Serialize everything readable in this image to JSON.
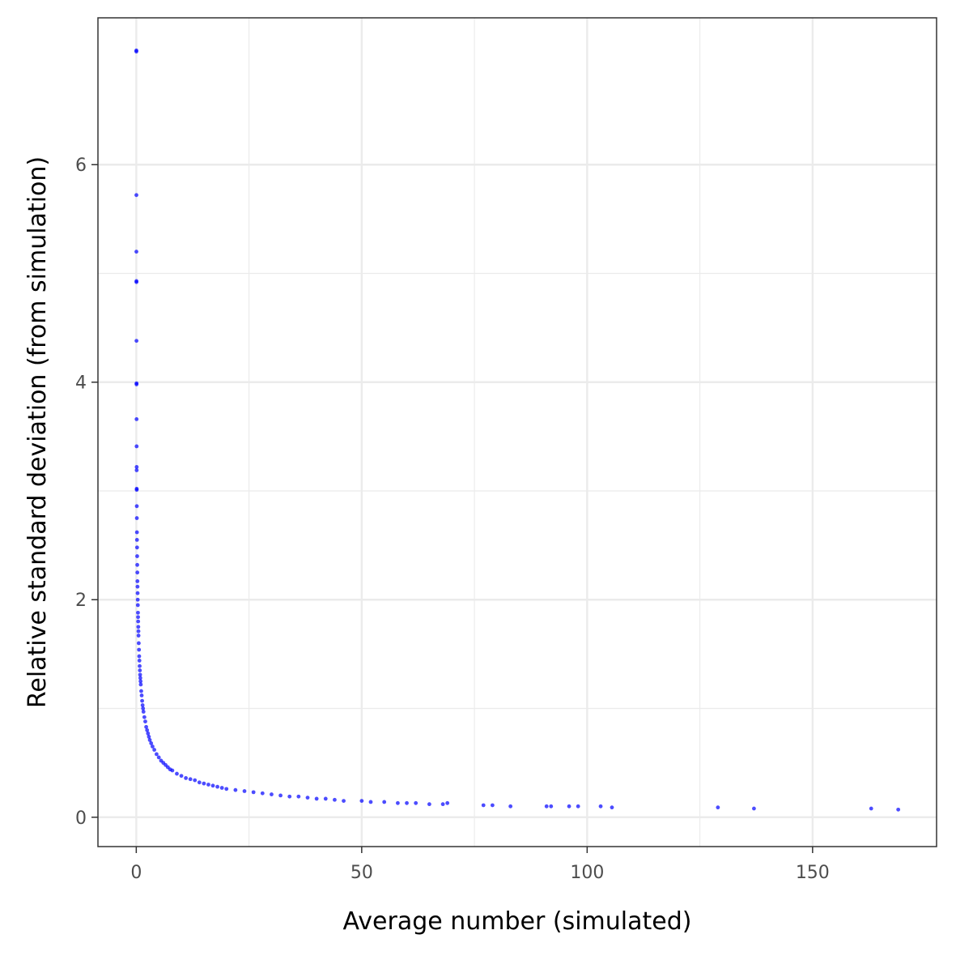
{
  "chart_data": {
    "type": "scatter",
    "title": "",
    "xlabel": "Average number (simulated)",
    "ylabel": "Relative standard deviation (from simulation)",
    "xlim": [
      -8.5,
      177.5
    ],
    "ylim": [
      -0.27,
      7.35
    ],
    "x_ticks": [
      0,
      50,
      100,
      150
    ],
    "x_tick_labels": [
      "0",
      "50",
      "100",
      "150"
    ],
    "y_ticks": [
      0,
      2,
      4,
      6
    ],
    "y_tick_labels": [
      "0",
      "2",
      "4",
      "6"
    ],
    "grid": true,
    "legend": "none",
    "point_color": "#0000ff",
    "point_opacity": 0.7,
    "series": [
      {
        "points": [
          [
            0.02,
            7.05
          ],
          [
            0.02,
            7.04
          ],
          [
            0.03,
            5.72
          ],
          [
            0.03,
            5.2
          ],
          [
            0.04,
            4.93
          ],
          [
            0.04,
            4.92
          ],
          [
            0.05,
            4.38
          ],
          [
            0.06,
            3.99
          ],
          [
            0.06,
            3.98
          ],
          [
            0.07,
            3.66
          ],
          [
            0.08,
            3.41
          ],
          [
            0.09,
            3.22
          ],
          [
            0.09,
            3.19
          ],
          [
            0.1,
            3.02
          ],
          [
            0.1,
            3.01
          ],
          [
            0.12,
            2.86
          ],
          [
            0.13,
            2.75
          ],
          [
            0.15,
            2.62
          ],
          [
            0.16,
            2.55
          ],
          [
            0.18,
            2.48
          ],
          [
            0.2,
            2.4
          ],
          [
            0.22,
            2.32
          ],
          [
            0.24,
            2.25
          ],
          [
            0.26,
            2.17
          ],
          [
            0.28,
            2.12
          ],
          [
            0.3,
            2.06
          ],
          [
            0.32,
            2.0
          ],
          [
            0.35,
            1.95
          ],
          [
            0.38,
            1.88
          ],
          [
            0.4,
            1.84
          ],
          [
            0.42,
            1.8
          ],
          [
            0.45,
            1.75
          ],
          [
            0.48,
            1.71
          ],
          [
            0.5,
            1.67
          ],
          [
            0.55,
            1.6
          ],
          [
            0.6,
            1.54
          ],
          [
            0.65,
            1.48
          ],
          [
            0.7,
            1.44
          ],
          [
            0.75,
            1.39
          ],
          [
            0.8,
            1.35
          ],
          [
            0.85,
            1.31
          ],
          [
            0.9,
            1.28
          ],
          [
            0.95,
            1.25
          ],
          [
            1.0,
            1.22
          ],
          [
            1.1,
            1.16
          ],
          [
            1.2,
            1.12
          ],
          [
            1.3,
            1.07
          ],
          [
            1.4,
            1.03
          ],
          [
            1.5,
            1.0
          ],
          [
            1.6,
            0.97
          ],
          [
            1.8,
            0.92
          ],
          [
            2.0,
            0.88
          ],
          [
            2.2,
            0.83
          ],
          [
            2.4,
            0.8
          ],
          [
            2.6,
            0.77
          ],
          [
            2.8,
            0.74
          ],
          [
            3.0,
            0.71
          ],
          [
            3.3,
            0.68
          ],
          [
            3.6,
            0.65
          ],
          [
            4.0,
            0.62
          ],
          [
            4.5,
            0.58
          ],
          [
            5.0,
            0.55
          ],
          [
            5.5,
            0.52
          ],
          [
            6.0,
            0.5
          ],
          [
            6.5,
            0.48
          ],
          [
            7.0,
            0.46
          ],
          [
            7.5,
            0.44
          ],
          [
            8.0,
            0.43
          ],
          [
            9.0,
            0.4
          ],
          [
            10.0,
            0.38
          ],
          [
            11.0,
            0.36
          ],
          [
            12.0,
            0.35
          ],
          [
            13.0,
            0.34
          ],
          [
            14.0,
            0.32
          ],
          [
            15.0,
            0.31
          ],
          [
            16.0,
            0.3
          ],
          [
            17.0,
            0.29
          ],
          [
            18.0,
            0.28
          ],
          [
            19.0,
            0.27
          ],
          [
            20.0,
            0.26
          ],
          [
            22.0,
            0.25
          ],
          [
            24.0,
            0.24
          ],
          [
            26.0,
            0.23
          ],
          [
            28.0,
            0.22
          ],
          [
            30.0,
            0.21
          ],
          [
            32.0,
            0.2
          ],
          [
            34.0,
            0.19
          ],
          [
            36.0,
            0.19
          ],
          [
            38.0,
            0.18
          ],
          [
            40.0,
            0.17
          ],
          [
            42.0,
            0.17
          ],
          [
            44.0,
            0.16
          ],
          [
            46.0,
            0.15
          ],
          [
            50.0,
            0.15
          ],
          [
            52.0,
            0.14
          ],
          [
            55.0,
            0.14
          ],
          [
            58.0,
            0.13
          ],
          [
            60.0,
            0.13
          ],
          [
            62.0,
            0.13
          ],
          [
            65.0,
            0.12
          ],
          [
            68.0,
            0.12
          ],
          [
            69.0,
            0.13
          ],
          [
            77.0,
            0.11
          ],
          [
            79.0,
            0.11
          ],
          [
            83.0,
            0.1
          ],
          [
            91.0,
            0.1
          ],
          [
            92.0,
            0.1
          ],
          [
            96.0,
            0.1
          ],
          [
            98.0,
            0.1
          ],
          [
            103.0,
            0.1
          ],
          [
            105.5,
            0.09
          ],
          [
            129.0,
            0.09
          ],
          [
            137.0,
            0.08
          ],
          [
            163.0,
            0.08
          ],
          [
            169.0,
            0.07
          ]
        ]
      }
    ]
  }
}
